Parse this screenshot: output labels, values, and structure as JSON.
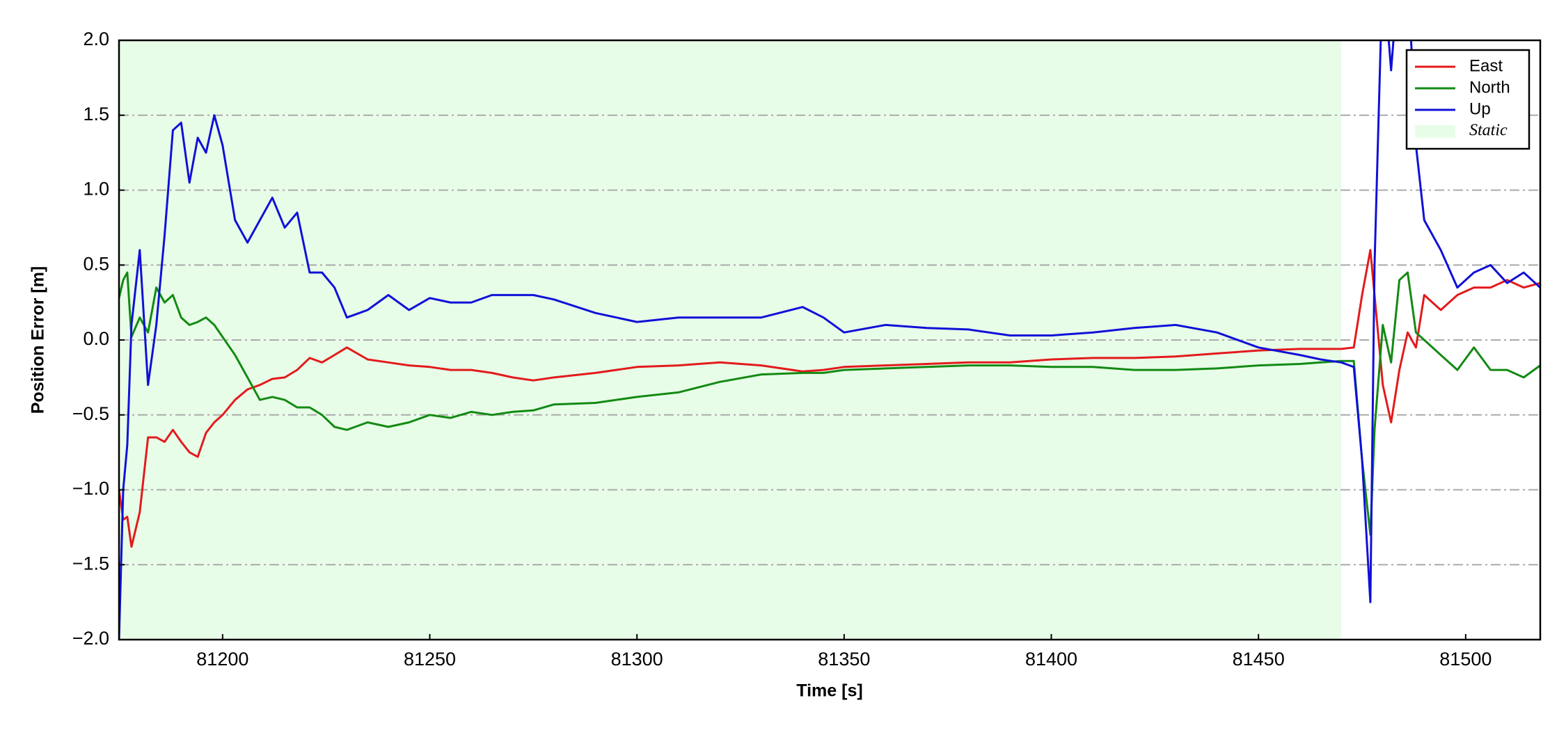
{
  "chart_data": {
    "type": "line",
    "xlabel": "Time [s]",
    "ylabel": "Position Error [m]",
    "x": [
      81175,
      81176,
      81177,
      81178,
      81180,
      81182,
      81184,
      81186,
      81188,
      81190,
      81192,
      81194,
      81196,
      81198,
      81200,
      81203,
      81206,
      81209,
      81212,
      81215,
      81218,
      81221,
      81224,
      81227,
      81230,
      81235,
      81240,
      81245,
      81250,
      81255,
      81260,
      81265,
      81270,
      81275,
      81280,
      81290,
      81300,
      81310,
      81320,
      81330,
      81340,
      81345,
      81350,
      81360,
      81370,
      81380,
      81390,
      81400,
      81410,
      81420,
      81430,
      81440,
      81450,
      81460,
      81465,
      81470,
      81473,
      81475,
      81477,
      81478,
      81480,
      81482,
      81484,
      81486,
      81488,
      81490,
      81494,
      81498,
      81502,
      81506,
      81510,
      81514,
      81518
    ],
    "series": [
      {
        "name": "East",
        "color": "#e31a1c",
        "values": [
          -1.0,
          -1.2,
          -1.18,
          -1.38,
          -1.15,
          -0.65,
          -0.65,
          -0.68,
          -0.6,
          -0.68,
          -0.75,
          -0.78,
          -0.62,
          -0.55,
          -0.5,
          -0.4,
          -0.33,
          -0.3,
          -0.26,
          -0.25,
          -0.2,
          -0.12,
          -0.15,
          -0.1,
          -0.05,
          -0.13,
          -0.15,
          -0.17,
          -0.18,
          -0.2,
          -0.2,
          -0.22,
          -0.25,
          -0.27,
          -0.25,
          -0.22,
          -0.18,
          -0.17,
          -0.15,
          -0.17,
          -0.21,
          -0.2,
          -0.18,
          -0.17,
          -0.16,
          -0.15,
          -0.15,
          -0.13,
          -0.12,
          -0.12,
          -0.11,
          -0.09,
          -0.07,
          -0.06,
          -0.06,
          -0.06,
          -0.05,
          0.3,
          0.6,
          0.3,
          -0.3,
          -0.55,
          -0.2,
          0.05,
          -0.05,
          0.3,
          0.2,
          0.3,
          0.35,
          0.35,
          0.4,
          0.35,
          0.38
        ]
      },
      {
        "name": "North",
        "color": "#138a13",
        "values": [
          0.28,
          0.4,
          0.45,
          0.02,
          0.15,
          0.05,
          0.35,
          0.25,
          0.3,
          0.15,
          0.1,
          0.12,
          0.15,
          0.1,
          0.02,
          -0.1,
          -0.25,
          -0.4,
          -0.38,
          -0.4,
          -0.45,
          -0.45,
          -0.5,
          -0.58,
          -0.6,
          -0.55,
          -0.58,
          -0.55,
          -0.5,
          -0.52,
          -0.48,
          -0.5,
          -0.48,
          -0.47,
          -0.43,
          -0.42,
          -0.38,
          -0.35,
          -0.28,
          -0.23,
          -0.22,
          -0.22,
          -0.2,
          -0.19,
          -0.18,
          -0.17,
          -0.17,
          -0.18,
          -0.18,
          -0.2,
          -0.2,
          -0.19,
          -0.17,
          -0.16,
          -0.15,
          -0.14,
          -0.14,
          -0.8,
          -1.3,
          -0.6,
          0.1,
          -0.15,
          0.4,
          0.45,
          0.05,
          0.0,
          -0.1,
          -0.2,
          -0.05,
          -0.2,
          -0.2,
          -0.25,
          -0.17
        ]
      },
      {
        "name": "Up",
        "color": "#1010d8",
        "values": [
          -2.0,
          -1.0,
          -0.7,
          0.1,
          0.6,
          -0.3,
          0.1,
          0.7,
          1.4,
          1.45,
          1.05,
          1.35,
          1.25,
          1.5,
          1.3,
          0.8,
          0.65,
          0.8,
          0.95,
          0.75,
          0.85,
          0.45,
          0.45,
          0.35,
          0.15,
          0.2,
          0.3,
          0.2,
          0.28,
          0.25,
          0.25,
          0.3,
          0.3,
          0.3,
          0.27,
          0.18,
          0.12,
          0.15,
          0.15,
          0.15,
          0.22,
          0.15,
          0.05,
          0.1,
          0.08,
          0.07,
          0.03,
          0.03,
          0.05,
          0.08,
          0.1,
          0.05,
          -0.05,
          -0.1,
          -0.13,
          -0.15,
          -0.18,
          -0.8,
          -1.75,
          0.5,
          2.5,
          1.8,
          2.5,
          2.5,
          1.3,
          0.8,
          0.6,
          0.35,
          0.45,
          0.5,
          0.38,
          0.45,
          0.35
        ]
      }
    ],
    "shaded_regions": [
      {
        "name": "Static",
        "start": 81175,
        "end": 81470,
        "color": "#e8fde8"
      }
    ],
    "xlim": [
      81175,
      81518
    ],
    "ylim": [
      -2,
      2
    ],
    "xticks": [
      81200,
      81250,
      81300,
      81350,
      81400,
      81450,
      81500
    ],
    "yticks": [
      {
        "value": -2,
        "label": "−2.0"
      },
      {
        "value": -1.5,
        "label": "−1.5"
      },
      {
        "value": -1,
        "label": "−1.0"
      },
      {
        "value": -0.5,
        "label": "−0.5"
      },
      {
        "value": 0,
        "label": "0.0"
      },
      {
        "value": 0.5,
        "label": "0.5"
      },
      {
        "value": 1,
        "label": "1.0"
      },
      {
        "value": 1.5,
        "label": "1.5"
      },
      {
        "value": 2,
        "label": "2.0"
      }
    ],
    "grid": true,
    "legend": "upper right"
  }
}
